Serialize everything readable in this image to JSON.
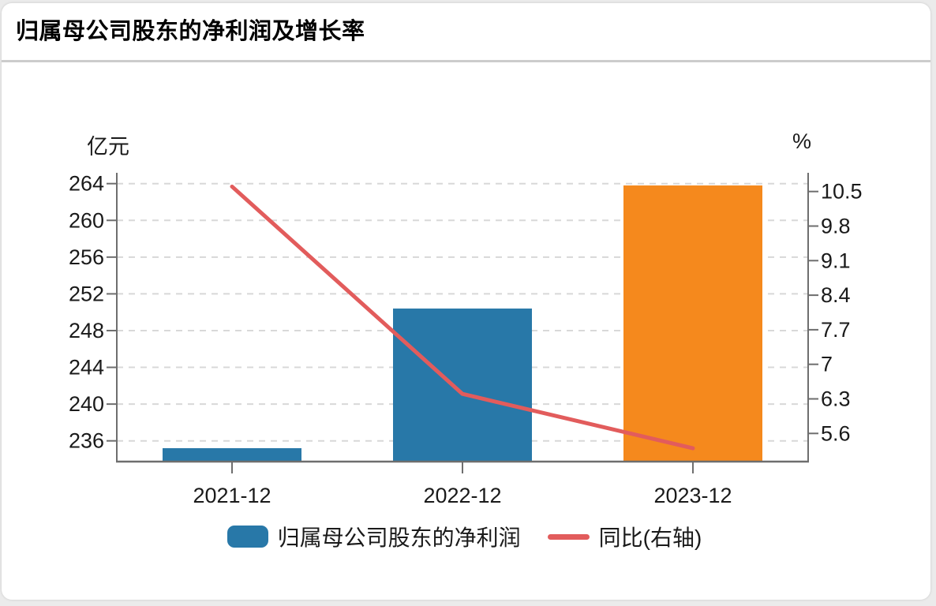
{
  "title": "归属母公司股东的净利润及增长率",
  "chart_data": {
    "type": "bar+line-dual-axis",
    "title": "归属母公司股东的净利润及增长率",
    "categories": [
      "2021-12",
      "2022-12",
      "2023-12"
    ],
    "series": [
      {
        "name": "归属母公司股东的净利润",
        "type": "bar",
        "axis": "left",
        "unit": "亿元",
        "values": [
          235.2,
          250.4,
          263.8
        ],
        "bar_colors": [
          "#2878A8",
          "#2878A8",
          "#F5891D"
        ]
      },
      {
        "name": "同比(右轴)",
        "type": "line",
        "axis": "right",
        "unit": "%",
        "values": [
          10.6,
          6.4,
          5.3
        ],
        "color": "#E25C5C"
      }
    ],
    "left_axis": {
      "unit": "亿元",
      "tick_labels": [
        "264",
        "260",
        "256",
        "252",
        "248",
        "244",
        "240",
        "236"
      ]
    },
    "right_axis": {
      "unit": "%",
      "tick_labels": [
        "10.5",
        "9.8",
        "9.1",
        "8.4",
        "7.7",
        "7",
        "6.3",
        "5.6"
      ]
    },
    "grid": "horizontal-dashed",
    "legend_position": "bottom"
  },
  "colors": {
    "bar_blue": "#2878A8",
    "bar_orange": "#F5891D",
    "line_red": "#E25C5C",
    "axis_gray": "#6e6e6e",
    "grid_gray": "#d8d8d8",
    "tick_text": "#1a1a1a",
    "card_bg": "#ffffff",
    "page_bg": "#ebebeb"
  }
}
